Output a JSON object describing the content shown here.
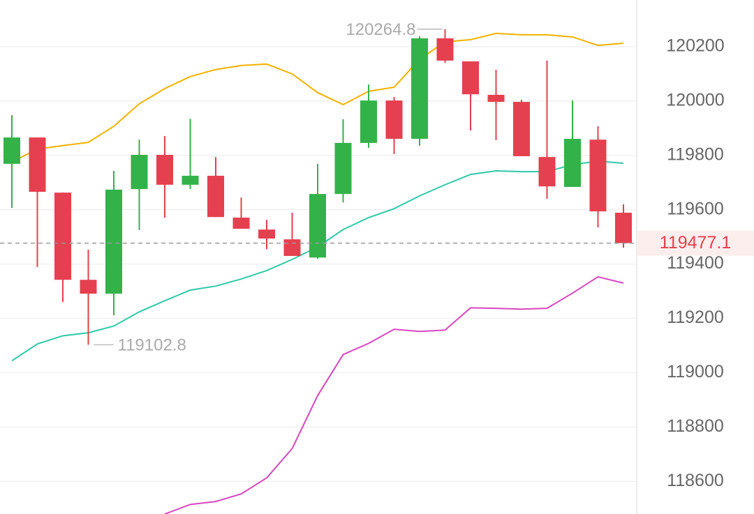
{
  "chart_data": {
    "type": "candlestick",
    "open": [
      119769,
      119866,
      119663,
      119342,
      119291,
      119676,
      119802,
      119692,
      119725,
      119571,
      119527,
      119491,
      119424,
      119658,
      119846,
      120002,
      119861,
      120231,
      120146,
      120023,
      119997,
      119794,
      119684,
      119858,
      119589
    ],
    "high": [
      119948,
      119866,
      119663,
      119453,
      119743,
      119858,
      119871,
      119935,
      119794,
      119645,
      119563,
      119589,
      119769,
      119933,
      120061,
      120015,
      120239,
      120264.8,
      120146,
      120115,
      120005,
      120149,
      120002,
      119907,
      119620
    ],
    "low": [
      119607,
      119389,
      119260,
      119102.8,
      119211,
      119525,
      119571,
      119676,
      119573,
      119530,
      119455,
      119430,
      119419,
      119627,
      119828,
      119805,
      119835,
      120141,
      119892,
      119856,
      119797,
      119640,
      119684,
      119535,
      119460
    ],
    "close": [
      119866,
      119666,
      119342,
      119291,
      119674,
      119802,
      119692,
      119725,
      119573,
      119530,
      119494,
      119430,
      119658,
      119846,
      120002,
      119861,
      120231,
      120149,
      120025,
      119997,
      119797,
      119686,
      119861,
      119594,
      119477.1
    ],
    "up_color": "#33b24a",
    "down_color": "#e5404f",
    "lines": [
      {
        "color": "#f2b200",
        "values": [
          119776,
          119823,
          119836,
          119848,
          119907,
          119990,
          120046,
          120090,
          120116,
          120131,
          120136,
          120100,
          120031,
          119987,
          120036,
          120051,
          120154,
          120218,
          120226,
          120249,
          120244,
          120244,
          120236,
          120205,
          120213
        ]
      },
      {
        "color": "#2dc9a8",
        "values": [
          119044,
          119106,
          119136,
          119147,
          119172,
          119224,
          119265,
          119304,
          119319,
          119345,
          119376,
          119417,
          119463,
          119527,
          119571,
          119604,
          119651,
          119692,
          119730,
          119743,
          119740,
          119740,
          119766,
          119779,
          119771
        ]
      },
      {
        "color": "#d946c0",
        "values": [
          null,
          null,
          null,
          null,
          null,
          null,
          118480,
          118515,
          118526,
          118554,
          118613,
          118721,
          118916,
          119067,
          119108,
          119160,
          119152,
          119157,
          119239,
          119237,
          119234,
          119237,
          119293,
          119353,
          119330
        ]
      }
    ],
    "ylim": [
      118480,
      120372
    ],
    "yticks": [
      118600,
      118800,
      119000,
      119200,
      119400,
      119600,
      119800,
      120000,
      120200
    ],
    "grid": true
  }
}
